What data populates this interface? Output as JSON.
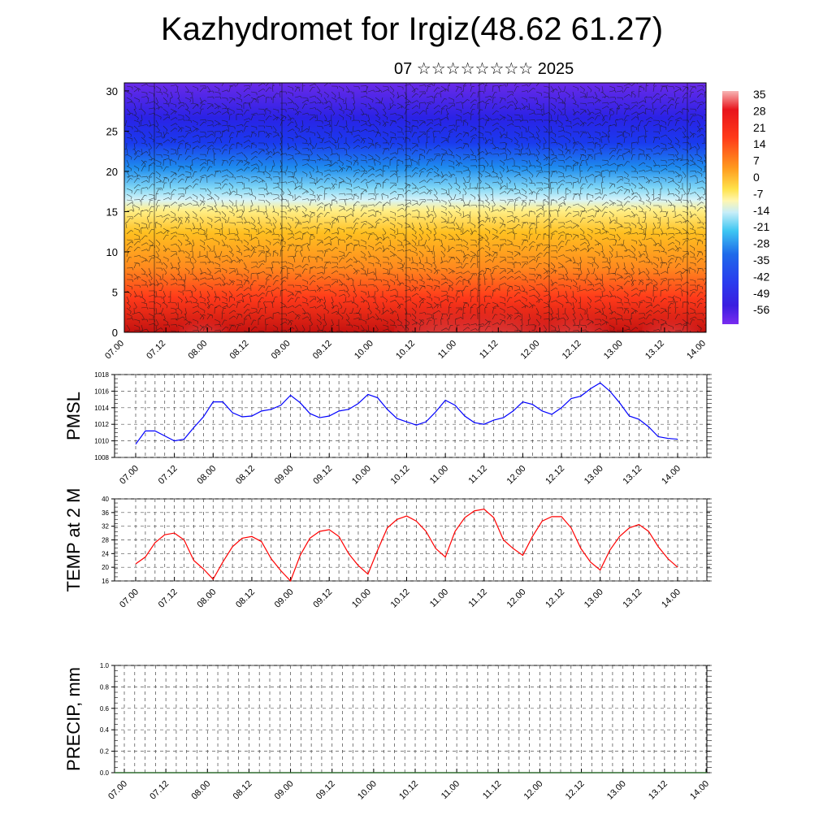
{
  "header": {
    "title": "Kazhydromet for Irgiz(48.62 61.27)",
    "subtitle": "07 ☆☆☆☆☆☆☆☆ 2025"
  },
  "time_labels": [
    "07.00",
    "07.12",
    "08.00",
    "08.12",
    "09.00",
    "09.12",
    "10.00",
    "10.12",
    "11.00",
    "11.12",
    "12.00",
    "12.12",
    "13.00",
    "13.12",
    "14.00"
  ],
  "chart_data": [
    {
      "type": "heatmap",
      "title": "",
      "xlabel": "",
      "ylabel": "",
      "x": [
        "07.00",
        "07.12",
        "08.00",
        "08.12",
        "09.00",
        "09.12",
        "10.00",
        "10.12",
        "11.00",
        "11.12",
        "12.00",
        "12.12",
        "13.00",
        "13.12",
        "14.00"
      ],
      "ylim": [
        0,
        31
      ],
      "yticks": [
        0,
        5,
        10,
        15,
        20,
        25,
        30
      ],
      "colorbar": {
        "labels": [
          "35",
          "28",
          "21",
          "14",
          "7",
          "0",
          "-7",
          "-14",
          "-21",
          "-28",
          "-35",
          "-42",
          "-49",
          "-56"
        ],
        "colors": [
          "#f7b5b5",
          "#e8141c",
          "#ff3a1a",
          "#ff7b1a",
          "#ffb21e",
          "#ffe24a",
          "#fff49a",
          "#c8eef8",
          "#3ec6f2",
          "#1e88ea",
          "#2a5ee8",
          "#3a3ef0",
          "#3a1ee0",
          "#7a2cf0"
        ]
      }
    },
    {
      "type": "line",
      "ylabel": "PMSL",
      "xlabel": "",
      "ylim": [
        1008,
        1018
      ],
      "yticks": [
        1008,
        1010,
        1012,
        1014,
        1016,
        1018
      ],
      "color": "#0000ff",
      "x": [
        "07.00",
        "07.03",
        "07.06",
        "07.09",
        "07.12",
        "07.15",
        "07.18",
        "07.21",
        "08.00",
        "08.03",
        "08.06",
        "08.09",
        "08.12",
        "08.15",
        "08.18",
        "08.21",
        "09.00",
        "09.03",
        "09.06",
        "09.09",
        "09.12",
        "09.15",
        "09.18",
        "09.21",
        "10.00",
        "10.03",
        "10.06",
        "10.09",
        "10.12",
        "10.15",
        "10.18",
        "10.21",
        "11.00",
        "11.03",
        "11.06",
        "11.09",
        "11.12",
        "11.15",
        "11.18",
        "11.21",
        "12.00",
        "12.03",
        "12.06",
        "12.09",
        "12.12",
        "12.15",
        "12.18",
        "12.21",
        "13.00",
        "13.03",
        "13.06",
        "13.09",
        "13.12",
        "13.15",
        "13.18",
        "13.21",
        "14.00"
      ],
      "values": [
        1009.6,
        1011.2,
        1011.2,
        1010.6,
        1010.0,
        1010.2,
        1011.6,
        1012.9,
        1014.7,
        1014.7,
        1013.4,
        1012.9,
        1013.0,
        1013.6,
        1013.8,
        1014.3,
        1015.5,
        1014.6,
        1013.3,
        1012.8,
        1013.0,
        1013.6,
        1013.8,
        1014.5,
        1015.6,
        1015.2,
        1013.8,
        1012.7,
        1012.3,
        1011.9,
        1012.3,
        1013.5,
        1014.9,
        1014.3,
        1013.0,
        1012.2,
        1012.0,
        1012.5,
        1012.8,
        1013.6,
        1014.7,
        1014.4,
        1013.6,
        1013.2,
        1014.0,
        1015.1,
        1015.4,
        1016.3,
        1017.0,
        1016.0,
        1014.6,
        1013.0,
        1012.6,
        1011.7,
        1010.5,
        1010.3,
        1010.2
      ]
    },
    {
      "type": "line",
      "ylabel": "TEMP at 2 M",
      "xlabel": "",
      "ylim": [
        16,
        40
      ],
      "yticks": [
        16,
        20,
        24,
        28,
        32,
        36,
        40
      ],
      "color": "#ff0000",
      "x": [
        "07.00",
        "07.03",
        "07.06",
        "07.09",
        "07.12",
        "07.15",
        "07.18",
        "07.21",
        "08.00",
        "08.03",
        "08.06",
        "08.09",
        "08.12",
        "08.15",
        "08.18",
        "08.21",
        "09.00",
        "09.03",
        "09.06",
        "09.09",
        "09.12",
        "09.15",
        "09.18",
        "09.21",
        "10.00",
        "10.03",
        "10.06",
        "10.09",
        "10.12",
        "10.15",
        "10.18",
        "10.21",
        "11.00",
        "11.03",
        "11.06",
        "11.09",
        "11.12",
        "11.15",
        "11.18",
        "11.21",
        "12.00",
        "12.03",
        "12.06",
        "12.09",
        "12.12",
        "12.15",
        "12.18",
        "12.21",
        "13.00",
        "13.03",
        "13.06",
        "13.09",
        "13.12",
        "13.15",
        "13.18",
        "13.21",
        "14.00"
      ],
      "values": [
        21.0,
        23.0,
        27.2,
        29.5,
        30.0,
        28.0,
        22.0,
        19.5,
        16.5,
        21.5,
        26.0,
        28.5,
        29.0,
        27.5,
        22.5,
        19.0,
        16.0,
        23.5,
        28.5,
        30.5,
        31.0,
        29.0,
        24.0,
        20.5,
        18.0,
        25.0,
        31.5,
        34.0,
        35.0,
        33.5,
        30.5,
        25.5,
        23.0,
        30.5,
        34.5,
        36.5,
        37.0,
        34.5,
        28.0,
        25.5,
        23.5,
        29.0,
        33.5,
        34.8,
        34.8,
        31.5,
        25.5,
        21.5,
        19.2,
        25.0,
        29.0,
        31.5,
        32.5,
        30.5,
        26.0,
        22.5,
        20.0
      ]
    },
    {
      "type": "bar",
      "ylabel": "PRECIP, mm",
      "xlabel": "",
      "ylim": [
        0.0,
        1.0
      ],
      "yticks": [
        "0.0",
        "0.2",
        "0.4",
        "0.6",
        "0.8",
        "1.0"
      ],
      "categories": [
        "07.00",
        "07.12",
        "08.00",
        "08.12",
        "09.00",
        "09.12",
        "10.00",
        "10.12",
        "11.00",
        "11.12",
        "12.00",
        "12.12",
        "13.00",
        "13.12",
        "14.00"
      ],
      "values": [
        0,
        0,
        0,
        0,
        0,
        0,
        0,
        0,
        0,
        0,
        0,
        0,
        0,
        0,
        0
      ]
    }
  ]
}
